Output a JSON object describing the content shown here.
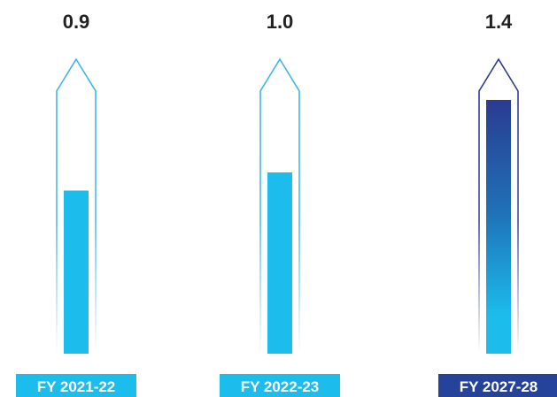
{
  "chart_data": {
    "type": "bar",
    "categories": [
      "FY 2021-22",
      "FY 2022-23",
      "FY 2027-28"
    ],
    "values": [
      0.9,
      1.0,
      1.4
    ],
    "value_labels": [
      "0.9",
      "1.0",
      "1.4"
    ],
    "title": "",
    "xlabel": "",
    "ylabel": "",
    "ylim": [
      0,
      1.5
    ],
    "grid": false,
    "legend": "none"
  },
  "colors": {
    "bar": "#1cbcec",
    "outline": "#3cb4e6",
    "highlight_outline": "#2b3a8c",
    "highlight_bar_top": "#2a3b90",
    "highlight_bar_mid": "#1f72b8",
    "highlight_bar_bottom": "#1cbcec",
    "label_bg": "#1cbcec",
    "highlight_label_bg": "#25439a",
    "value_text": "#222222",
    "label_text": "#ffffff"
  },
  "highlight_index": 2
}
